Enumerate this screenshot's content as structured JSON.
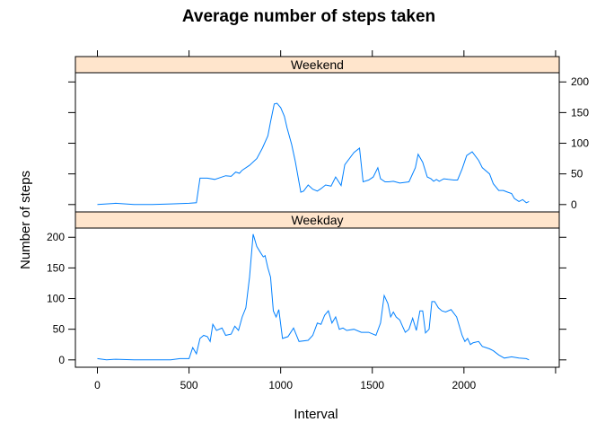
{
  "chart_data": {
    "type": "line",
    "title": "Average number of steps taken",
    "xlabel": "Interval",
    "ylabel": "Number of steps",
    "xlim": [
      -120,
      2520
    ],
    "ylim": [
      -12,
      215
    ],
    "x_ticks": [
      0,
      500,
      1000,
      1500,
      2000
    ],
    "x_tick_labels": [
      "0",
      "500",
      "1000",
      "1500",
      "2000"
    ],
    "y_ticks": [
      0,
      50,
      100,
      150,
      200
    ],
    "y_tick_labels": [
      "0",
      "50",
      "100",
      "150",
      "200"
    ],
    "strip_color": "#ffe5cc",
    "line_color": "#0080ff",
    "panels": [
      {
        "name": "Weekend",
        "y_axis_side": "right",
        "x": [
          0,
          100,
          200,
          300,
          400,
          500,
          540,
          560,
          600,
          640,
          700,
          730,
          755,
          775,
          790,
          830,
          870,
          900,
          930,
          945,
          965,
          980,
          1000,
          1020,
          1035,
          1060,
          1080,
          1110,
          1125,
          1150,
          1175,
          1200,
          1220,
          1245,
          1275,
          1300,
          1330,
          1350,
          1400,
          1430,
          1450,
          1480,
          1505,
          1530,
          1545,
          1570,
          1590,
          1615,
          1650,
          1700,
          1735,
          1750,
          1775,
          1800,
          1820,
          1835,
          1850,
          1865,
          1890,
          1915,
          1945,
          1965,
          1990,
          2015,
          2045,
          2080,
          2100,
          2140,
          2160,
          2190,
          2215,
          2240,
          2260,
          2275,
          2300,
          2320,
          2340,
          2355
        ],
        "y": [
          0,
          2,
          0,
          0,
          1,
          2,
          3,
          43,
          43,
          41,
          47,
          46,
          53,
          51,
          56,
          64,
          75,
          92,
          112,
          135,
          164,
          165,
          158,
          144,
          125,
          98,
          70,
          20,
          22,
          32,
          25,
          22,
          26,
          32,
          30,
          45,
          31,
          65,
          85,
          92,
          37,
          40,
          45,
          60,
          42,
          37,
          37,
          38,
          35,
          37,
          60,
          82,
          69,
          45,
          42,
          38,
          41,
          38,
          42,
          41,
          40,
          40,
          58,
          80,
          86,
          72,
          60,
          50,
          34,
          23,
          23,
          20,
          18,
          10,
          5,
          8,
          3,
          5
        ],
        "ytick_values": [
          0,
          50,
          100,
          150,
          200
        ]
      },
      {
        "name": "Weekday",
        "y_axis_side": "left",
        "x": [
          0,
          50,
          100,
          200,
          300,
          400,
          450,
          500,
          520,
          540,
          560,
          580,
          600,
          615,
          630,
          650,
          680,
          700,
          730,
          750,
          770,
          790,
          810,
          830,
          850,
          870,
          890,
          905,
          915,
          930,
          945,
          960,
          975,
          990,
          1010,
          1040,
          1070,
          1100,
          1150,
          1175,
          1200,
          1220,
          1240,
          1260,
          1280,
          1300,
          1320,
          1340,
          1360,
          1400,
          1440,
          1480,
          1520,
          1545,
          1565,
          1585,
          1600,
          1615,
          1630,
          1650,
          1665,
          1680,
          1700,
          1720,
          1740,
          1760,
          1775,
          1790,
          1810,
          1825,
          1840,
          1860,
          1880,
          1900,
          1930,
          1960,
          1990,
          2005,
          2020,
          2035,
          2050,
          2080,
          2100,
          2120,
          2140,
          2160,
          2190,
          2220,
          2260,
          2300,
          2340,
          2355
        ],
        "y": [
          2,
          0,
          1,
          0,
          0,
          0,
          2,
          2,
          20,
          10,
          35,
          40,
          38,
          30,
          58,
          48,
          52,
          40,
          42,
          55,
          48,
          70,
          85,
          135,
          205,
          185,
          175,
          168,
          170,
          150,
          135,
          80,
          70,
          82,
          35,
          38,
          52,
          30,
          32,
          40,
          60,
          58,
          73,
          80,
          60,
          70,
          50,
          52,
          48,
          50,
          45,
          45,
          40,
          60,
          105,
          92,
          70,
          78,
          70,
          65,
          55,
          45,
          50,
          68,
          48,
          80,
          80,
          44,
          50,
          95,
          95,
          85,
          80,
          78,
          82,
          70,
          40,
          30,
          35,
          25,
          28,
          30,
          22,
          20,
          18,
          15,
          8,
          3,
          5,
          3,
          2,
          0
        ],
        "ytick_values": [
          0,
          50,
          100,
          150,
          200
        ]
      }
    ]
  }
}
